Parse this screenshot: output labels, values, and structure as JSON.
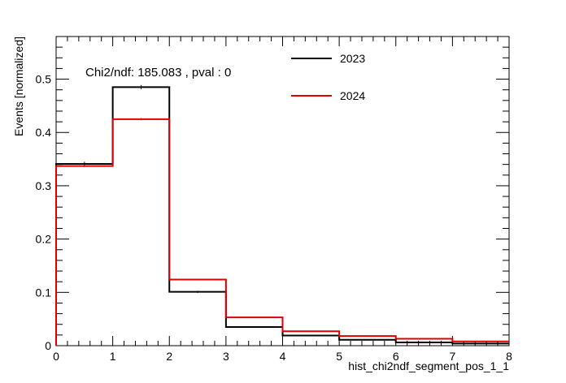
{
  "chart_data": {
    "type": "histogram",
    "xlabel": "hist_chi2ndf_segment_pos_1_1",
    "ylabel": "Events [normalized]",
    "xlim": [
      0,
      8
    ],
    "ylim": [
      0,
      0.58
    ],
    "x_ticks": [
      "0",
      "1",
      "2",
      "3",
      "4",
      "5",
      "6",
      "7",
      "8"
    ],
    "y_ticks": [
      "0",
      "0.1",
      "0.2",
      "0.3",
      "0.4",
      "0.5"
    ],
    "bin_edges": [
      0,
      1,
      2,
      3,
      4,
      5,
      6,
      7,
      8
    ],
    "annotation": "Chi2/ndf: 185.083 , pval : 0",
    "legend_position": "top-right",
    "series": [
      {
        "name": "2023",
        "color": "#000000",
        "values": [
          0.341,
          0.485,
          0.101,
          0.035,
          0.019,
          0.011,
          0.006,
          0.004
        ],
        "errors": [
          0.004,
          0.004,
          0.002,
          0.001,
          0.001,
          0.001,
          0.001,
          0.001
        ]
      },
      {
        "name": "2024",
        "color": "#dd0000",
        "values": [
          0.337,
          0.425,
          0.124,
          0.053,
          0.027,
          0.018,
          0.013,
          0.008
        ],
        "errors": [
          0.002,
          0.002,
          0.001,
          0.001,
          0.001,
          0.001,
          0.001,
          0.001
        ]
      }
    ]
  }
}
